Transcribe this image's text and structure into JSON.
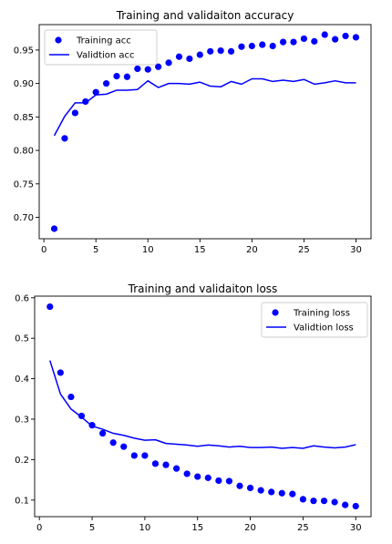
{
  "chart_data": [
    {
      "type": "line",
      "title": "Training and validaiton accuracy",
      "xlabel": "",
      "ylabel": "",
      "xlim": [
        -0.45,
        31.45
      ],
      "ylim": [
        0.668,
        0.988
      ],
      "xticks": [
        0,
        5,
        10,
        15,
        20,
        25,
        30
      ],
      "yticks": [
        0.7,
        0.75,
        0.8,
        0.85,
        0.9,
        0.95
      ],
      "ytick_labels": [
        "0.70",
        "0.75",
        "0.80",
        "0.85",
        "0.90",
        "0.95"
      ],
      "grid": false,
      "legend_position": "top-left",
      "x": [
        1,
        2,
        3,
        4,
        5,
        6,
        7,
        8,
        9,
        10,
        11,
        12,
        13,
        14,
        15,
        16,
        17,
        18,
        19,
        20,
        21,
        22,
        23,
        24,
        25,
        26,
        27,
        28,
        29,
        30
      ],
      "series": [
        {
          "name": "Training acc",
          "style": "markers",
          "color": "#0000ff",
          "values": [
            0.683,
            0.818,
            0.856,
            0.873,
            0.887,
            0.9,
            0.911,
            0.91,
            0.922,
            0.921,
            0.925,
            0.931,
            0.94,
            0.937,
            0.943,
            0.948,
            0.949,
            0.948,
            0.955,
            0.956,
            0.958,
            0.956,
            0.962,
            0.962,
            0.967,
            0.963,
            0.973,
            0.966,
            0.971,
            0.969
          ]
        },
        {
          "name": "Validtion acc",
          "style": "line",
          "color": "#0000ff",
          "values": [
            0.822,
            0.851,
            0.871,
            0.871,
            0.883,
            0.884,
            0.89,
            0.89,
            0.891,
            0.904,
            0.894,
            0.9,
            0.9,
            0.899,
            0.902,
            0.896,
            0.895,
            0.903,
            0.899,
            0.907,
            0.907,
            0.903,
            0.905,
            0.903,
            0.906,
            0.899,
            0.901,
            0.904,
            0.901,
            0.901
          ]
        }
      ]
    },
    {
      "type": "line",
      "title": "Training and validaiton loss",
      "xlabel": "",
      "ylabel": "",
      "xlim": [
        -0.45,
        31.45
      ],
      "ylim": [
        0.059,
        0.604
      ],
      "xticks": [
        0,
        5,
        10,
        15,
        20,
        25,
        30
      ],
      "yticks": [
        0.1,
        0.2,
        0.3,
        0.4,
        0.5,
        0.6
      ],
      "ytick_labels": [
        "0.1",
        "0.2",
        "0.3",
        "0.4",
        "0.5",
        "0.6"
      ],
      "grid": false,
      "legend_position": "top-right",
      "x": [
        1,
        2,
        3,
        4,
        5,
        6,
        7,
        8,
        9,
        10,
        11,
        12,
        13,
        14,
        15,
        16,
        17,
        18,
        19,
        20,
        21,
        22,
        23,
        24,
        25,
        26,
        27,
        28,
        29,
        30
      ],
      "series": [
        {
          "name": "Training loss",
          "style": "markers",
          "color": "#0000ff",
          "values": [
            0.578,
            0.415,
            0.355,
            0.308,
            0.285,
            0.265,
            0.242,
            0.232,
            0.21,
            0.21,
            0.19,
            0.187,
            0.178,
            0.165,
            0.158,
            0.155,
            0.148,
            0.147,
            0.135,
            0.13,
            0.124,
            0.12,
            0.117,
            0.115,
            0.102,
            0.098,
            0.098,
            0.095,
            0.088,
            0.085
          ]
        },
        {
          "name": "Validtion loss",
          "style": "line",
          "color": "#0000ff",
          "values": [
            0.445,
            0.362,
            0.325,
            0.305,
            0.283,
            0.275,
            0.265,
            0.26,
            0.253,
            0.248,
            0.249,
            0.24,
            0.238,
            0.236,
            0.233,
            0.236,
            0.234,
            0.231,
            0.233,
            0.23,
            0.23,
            0.231,
            0.228,
            0.23,
            0.228,
            0.234,
            0.231,
            0.229,
            0.231,
            0.237
          ]
        }
      ]
    }
  ]
}
